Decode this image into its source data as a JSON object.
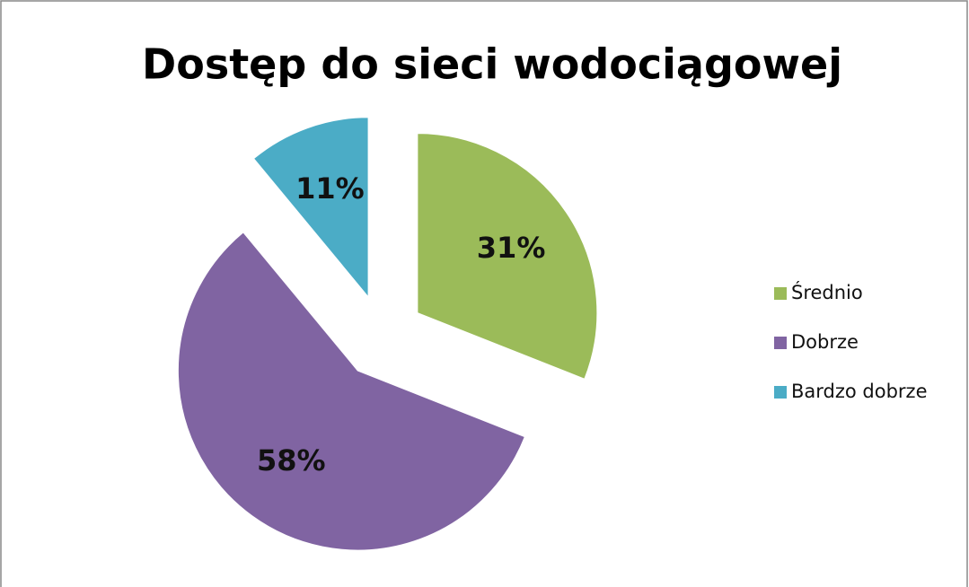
{
  "chart_data": {
    "type": "pie",
    "title": "Dostęp do sieci wodociągowej",
    "categories": [
      "Średnio",
      "Dobrze",
      "Bardzo dobrze"
    ],
    "values": [
      31,
      58,
      11
    ],
    "value_labels": [
      "31%",
      "58%",
      "11%"
    ],
    "colors": [
      "#9bbb59",
      "#8064a2",
      "#4bacc6"
    ],
    "legend": "right"
  }
}
